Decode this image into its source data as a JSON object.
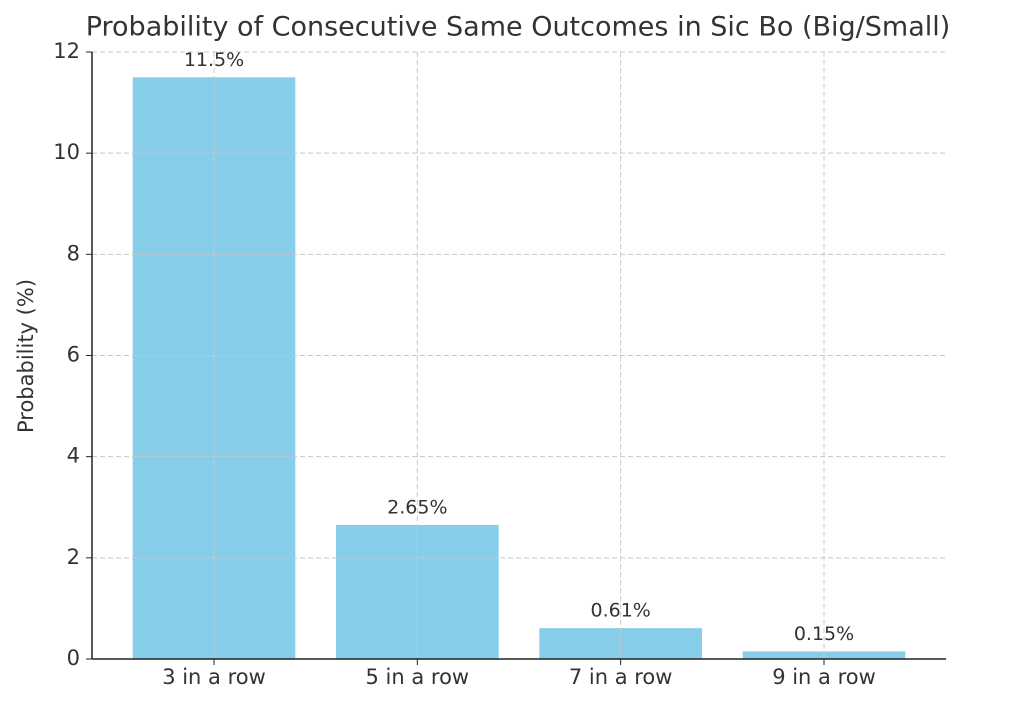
{
  "chart_data": {
    "type": "bar",
    "title": "Probability of Consecutive Same Outcomes in Sic Bo (Big/Small)",
    "y_label": "Probability (%)",
    "categories": [
      "3 in a row",
      "5 in a row",
      "7 in a row",
      "9 in a row"
    ],
    "values": [
      11.5,
      2.65,
      0.61,
      0.15
    ],
    "value_labels": [
      "11.5%",
      "2.65%",
      "0.61%",
      "0.15%"
    ],
    "color": "#87ceeb",
    "ylim": [
      0,
      12
    ],
    "yticks": [
      0,
      2,
      4,
      6,
      8,
      10,
      12
    ],
    "grid": true
  }
}
